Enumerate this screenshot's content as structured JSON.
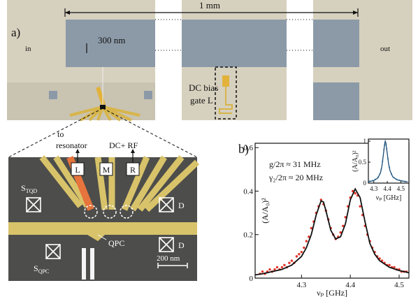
{
  "panel_a": {
    "label": "a)",
    "left_label": "in",
    "right_label": "out",
    "scale_long": "1 mm",
    "scale_short": "300 nm",
    "gate_label_1": "DC bias",
    "gate_label_2": "gate L"
  },
  "panel_sem": {
    "to_1": "to",
    "to_2": "resonator",
    "dc_rf": "DC+ RF",
    "gate_l": "L",
    "gate_m": "M",
    "gate_r": "R",
    "source_tqd": {
      "main": "S",
      "sub": "TQD"
    },
    "drain_1": "D",
    "drain_2": "D",
    "qpc": "QPC",
    "source_qpc": {
      "main": "S",
      "sub": "QPC"
    },
    "scale": "200 nm"
  },
  "chart_data": [
    {
      "type": "line",
      "panel_label": "b)",
      "xlabel": "νₚ [GHz]",
      "ylabel": "(A/A₀)²",
      "annotations": [
        "g/2π ≈ 31 MHz",
        "γ₂/2π ≈ 20 MHz"
      ],
      "xlim": [
        4.205,
        4.52
      ],
      "ylim": [
        0,
        0.62
      ],
      "xticks": [
        4.3,
        4.4,
        4.5
      ],
      "yticks": [
        0,
        0.2,
        0.4,
        0.6
      ],
      "series": [
        {
          "mode": "markers",
          "color": "#e3342b",
          "x": [
            4.215,
            4.22,
            4.225,
            4.23,
            4.235,
            4.24,
            4.245,
            4.25,
            4.255,
            4.26,
            4.265,
            4.27,
            4.275,
            4.28,
            4.285,
            4.29,
            4.295,
            4.3,
            4.305,
            4.31,
            4.315,
            4.32,
            4.325,
            4.33,
            4.335,
            4.34,
            4.345,
            4.35,
            4.355,
            4.36,
            4.365,
            4.37,
            4.375,
            4.38,
            4.385,
            4.39,
            4.395,
            4.4,
            4.405,
            4.41,
            4.415,
            4.42,
            4.425,
            4.43,
            4.435,
            4.44,
            4.445,
            4.45,
            4.455,
            4.46,
            4.465,
            4.47,
            4.475,
            4.48,
            4.485,
            4.49,
            4.495,
            4.5,
            4.505,
            4.51,
            4.515
          ],
          "values": [
            0.02,
            0.03,
            0.02,
            0.03,
            0.04,
            0.03,
            0.04,
            0.05,
            0.04,
            0.05,
            0.06,
            0.05,
            0.07,
            0.08,
            0.07,
            0.1,
            0.11,
            0.12,
            0.14,
            0.17,
            0.19,
            0.23,
            0.26,
            0.3,
            0.33,
            0.36,
            0.34,
            0.31,
            0.27,
            0.23,
            0.2,
            0.18,
            0.19,
            0.21,
            0.24,
            0.28,
            0.33,
            0.37,
            0.4,
            0.39,
            0.38,
            0.33,
            0.29,
            0.24,
            0.2,
            0.17,
            0.14,
            0.12,
            0.1,
            0.09,
            0.08,
            0.07,
            0.06,
            0.06,
            0.05,
            0.05,
            0.04,
            0.04,
            0.03,
            0.03,
            0.03
          ]
        },
        {
          "mode": "line",
          "color": "#111111",
          "x": [
            4.205,
            4.22,
            4.24,
            4.26,
            4.28,
            4.3,
            4.31,
            4.32,
            4.33,
            4.34,
            4.345,
            4.35,
            4.36,
            4.37,
            4.38,
            4.39,
            4.4,
            4.41,
            4.42,
            4.43,
            4.44,
            4.45,
            4.46,
            4.48,
            4.5,
            4.52
          ],
          "values": [
            0.015,
            0.02,
            0.03,
            0.04,
            0.06,
            0.1,
            0.14,
            0.2,
            0.29,
            0.355,
            0.35,
            0.31,
            0.22,
            0.18,
            0.19,
            0.25,
            0.36,
            0.41,
            0.37,
            0.26,
            0.16,
            0.11,
            0.08,
            0.05,
            0.035,
            0.025
          ]
        }
      ]
    },
    {
      "type": "line",
      "xlabel": "νₚ [GHz]",
      "ylabel": "(A/A₀)²",
      "xlim": [
        4.26,
        4.56
      ],
      "ylim": [
        0,
        1.05
      ],
      "xticks": [
        4.3,
        4.4,
        4.5
      ],
      "yticks": [
        0,
        0.5,
        1
      ],
      "series": [
        {
          "mode": "markers",
          "color": "#5aa9cf",
          "x": [
            4.27,
            4.29,
            4.31,
            4.33,
            4.345,
            4.355,
            4.365,
            4.375,
            4.38,
            4.385,
            4.39,
            4.395,
            4.405,
            4.415,
            4.43,
            4.45,
            4.47,
            4.49,
            4.51,
            4.53
          ],
          "values": [
            0.05,
            0.06,
            0.09,
            0.14,
            0.22,
            0.33,
            0.52,
            0.8,
            0.9,
            0.97,
            0.92,
            0.82,
            0.58,
            0.38,
            0.22,
            0.13,
            0.09,
            0.07,
            0.05,
            0.04
          ]
        },
        {
          "mode": "line",
          "color": "#1f4e79",
          "x": [
            4.26,
            4.3,
            4.33,
            4.35,
            4.36,
            4.37,
            4.38,
            4.385,
            4.39,
            4.4,
            4.41,
            4.42,
            4.44,
            4.47,
            4.51,
            4.55
          ],
          "values": [
            0.03,
            0.06,
            0.12,
            0.25,
            0.4,
            0.65,
            0.92,
            1.0,
            0.95,
            0.7,
            0.45,
            0.3,
            0.15,
            0.08,
            0.05,
            0.03
          ]
        }
      ]
    }
  ]
}
